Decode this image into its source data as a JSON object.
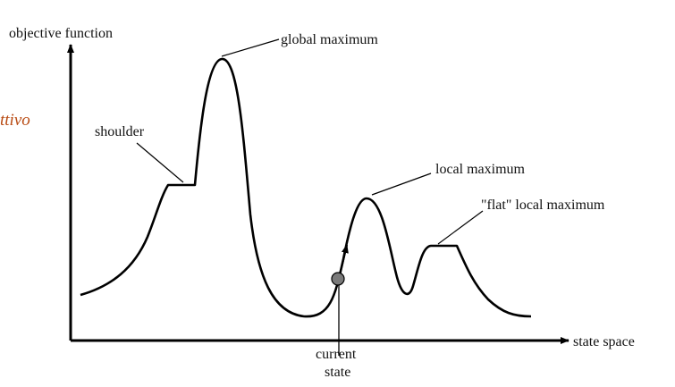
{
  "side_fragment": {
    "text": "ttivo",
    "color": "#b84a12"
  },
  "axes": {
    "y_label": "objective function",
    "x_label": "state space"
  },
  "annotations": {
    "global_maximum": "global maximum",
    "shoulder": "shoulder",
    "local_maximum": "local maximum",
    "flat_local_maximum": "\"flat\" local maximum",
    "current_state_line1": "current",
    "current_state_line2": "state"
  },
  "colors": {
    "curve": "#000000",
    "marker_fill": "#7a7a7a"
  }
}
